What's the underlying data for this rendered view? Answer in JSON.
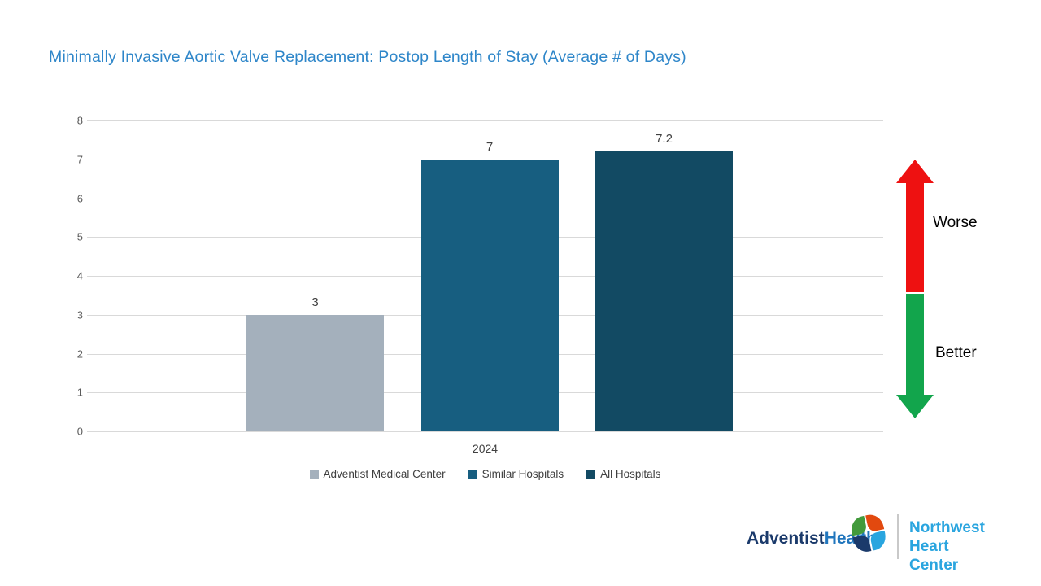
{
  "title": {
    "text": "Minimally Invasive Aortic Valve Replacement: Postop Length of Stay (Average # of Days)",
    "color": "#2E86C9"
  },
  "chart_data": {
    "type": "bar",
    "categories": [
      "2024"
    ],
    "series": [
      {
        "name": "Adventist Medical Center",
        "values": [
          3
        ],
        "color": "#A4B0BC"
      },
      {
        "name": "Similar Hospitals",
        "values": [
          7
        ],
        "color": "#175E80"
      },
      {
        "name": "All Hospitals",
        "values": [
          7.2
        ],
        "color": "#124A63"
      }
    ],
    "data_labels": [
      "3",
      "7",
      "7.2"
    ],
    "ylim": [
      0,
      8
    ],
    "yticks": [
      0,
      1,
      2,
      3,
      4,
      5,
      6,
      7,
      8
    ],
    "grid": true,
    "gridline_color": "#D9D9D9",
    "axis_text_color": "#595959",
    "label_text_color": "#404040",
    "legend_position": "bottom"
  },
  "annotations": {
    "worse_label": "Worse",
    "better_label": "Better",
    "worse_color": "#EE1111",
    "better_color": "#12A54C"
  },
  "footer": {
    "brand_part1": "Adventist",
    "brand_part2": "Health",
    "center_line1": "Northwest",
    "center_line2": "Heart Center"
  }
}
